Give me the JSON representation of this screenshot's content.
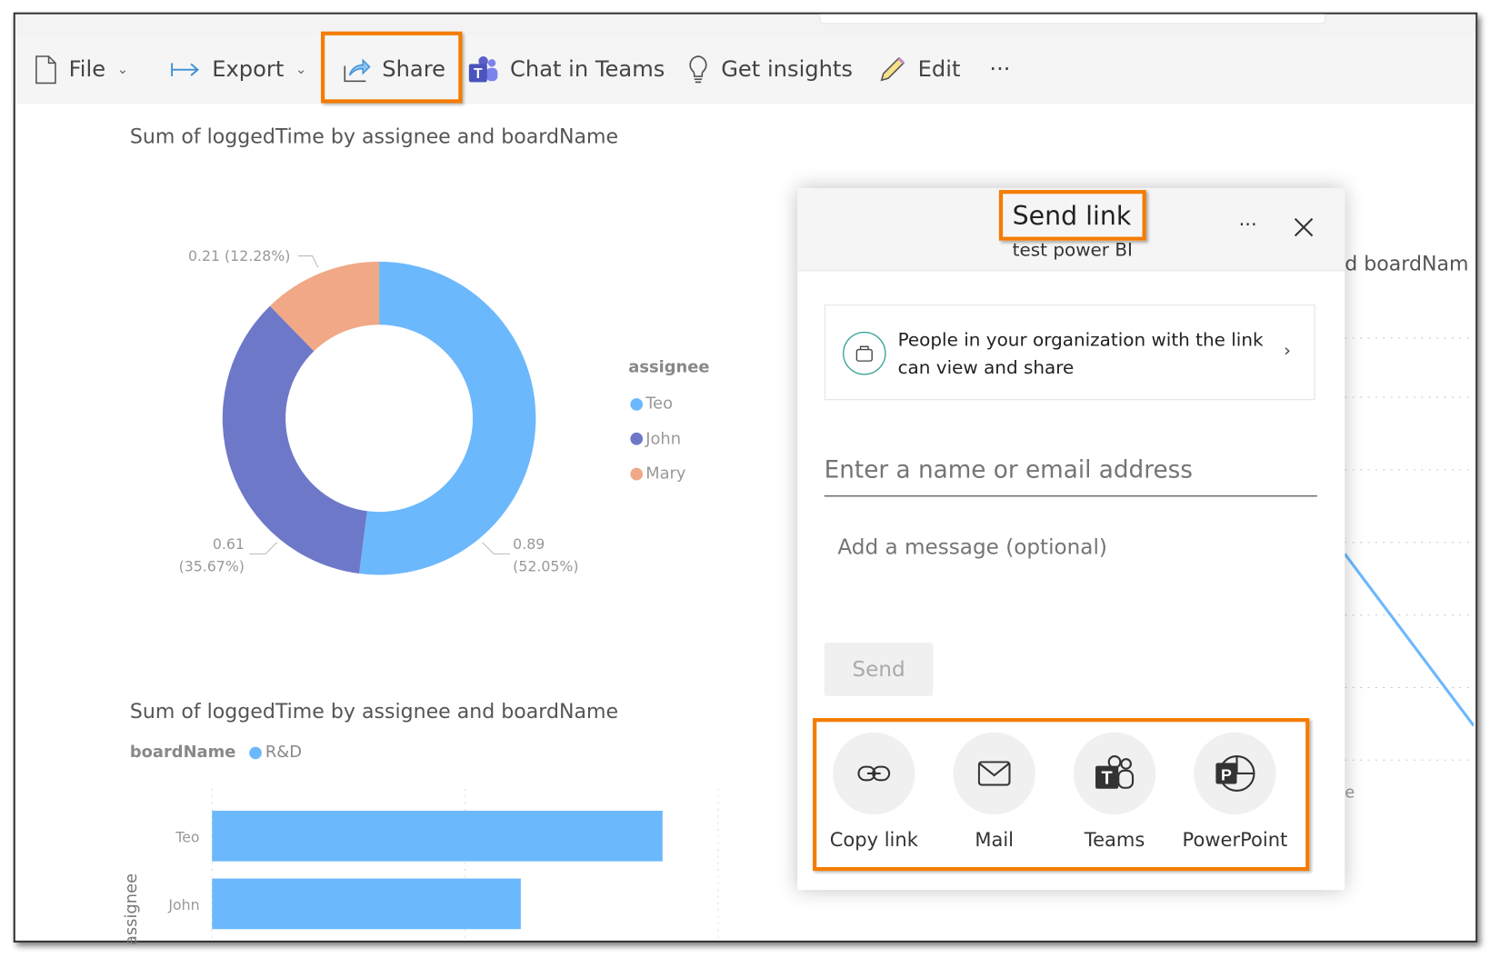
{
  "toolbar": {
    "file": "File",
    "export": "Export",
    "share": "Share",
    "chat_in_teams": "Chat in Teams",
    "get_insights": "Get insights",
    "edit": "Edit",
    "more": "···"
  },
  "donut": {
    "title": "Sum of loggedTime by assignee and boardName",
    "legend_title": "assignee",
    "chart_data": {
      "type": "pie",
      "donut": true,
      "slices": [
        {
          "name": "Teo",
          "value": 0.89,
          "percent": "52.05%",
          "color": "#6cb8fc",
          "label_value": "0.89",
          "label_pct": "(52.05%)"
        },
        {
          "name": "John",
          "value": 0.61,
          "percent": "35.67%",
          "color": "#6e78c8",
          "label_value": "0.61",
          "label_pct": "(35.67%)"
        },
        {
          "name": "Mary",
          "value": 0.21,
          "percent": "12.28%",
          "color": "#f0a886",
          "label_value": "0.21 (12.28%)"
        }
      ]
    }
  },
  "bar": {
    "title": "Sum of loggedTime by assignee and boardName",
    "legend_title": "boardName",
    "legend_item": "R&D",
    "legend_color": "#6cb8fc",
    "ylabel": "assignee",
    "chart_data": {
      "type": "bar",
      "orientation": "horizontal",
      "categories": [
        "Teo",
        "John"
      ],
      "series": [
        {
          "name": "R&D",
          "values": [
            0.89,
            0.61
          ]
        }
      ],
      "xlim": [
        0,
        1
      ],
      "grid": true
    }
  },
  "background_chart": {
    "title_fragment": "d boardNam",
    "label_fragment": "e"
  },
  "dialog": {
    "title": "Send link",
    "subtitle": "test power BI",
    "more": "···",
    "permission_text": "People in your organization with the link can view and share",
    "recipient_placeholder": "Enter a name or email address",
    "message_placeholder": "Add a message (optional)",
    "send": "Send",
    "options": [
      {
        "label": "Copy link",
        "icon": "link-icon"
      },
      {
        "label": "Mail",
        "icon": "mail-icon"
      },
      {
        "label": "Teams",
        "icon": "teams-icon"
      },
      {
        "label": "PowerPoint",
        "icon": "powerpoint-icon"
      }
    ]
  },
  "colors": {
    "highlight": "#f47c00",
    "teams": "#5b5fc7"
  }
}
